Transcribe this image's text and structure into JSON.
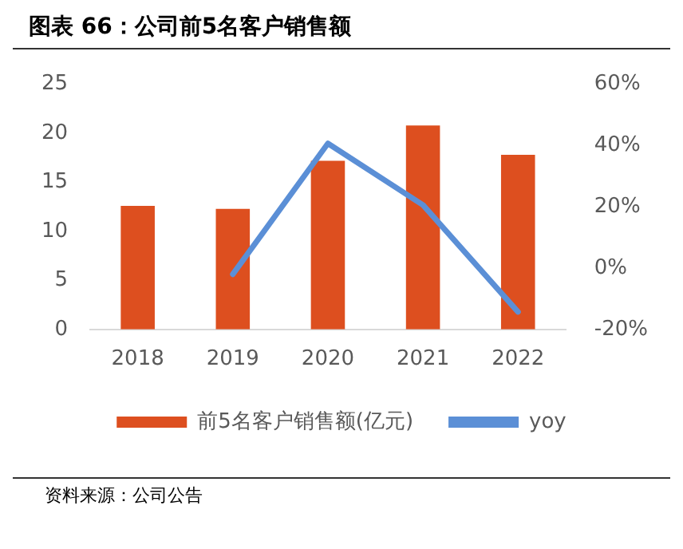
{
  "chart_data": {
    "type": "bar",
    "title": "图表 66：公司前5名客户销售额",
    "categories": [
      "2018",
      "2019",
      "2020",
      "2021",
      "2022"
    ],
    "series": [
      {
        "name": "前5名客户销售额(亿元)",
        "color": "#dd4f1f",
        "values": [
          12.6,
          12.3,
          17.2,
          20.8,
          17.8
        ]
      },
      {
        "name": "yoy",
        "type": "line",
        "axis": "y2",
        "color": "#5b8fd6",
        "values": [
          null,
          -2,
          40.7,
          20.6,
          -14.3
        ]
      }
    ],
    "ylim": [
      0,
      25
    ],
    "yticks": [
      0,
      5,
      10,
      15,
      20,
      25
    ],
    "y2lim": [
      -20,
      60
    ],
    "y2ticks": [
      {
        "value": -20,
        "label": "-20%"
      },
      {
        "value": 0,
        "label": "0%"
      },
      {
        "value": 20,
        "label": "20%"
      },
      {
        "value": 40,
        "label": "40%"
      },
      {
        "value": 60,
        "label": "60%"
      }
    ],
    "grid": false,
    "legend": "bottom",
    "marker": "none",
    "line_style": "solid",
    "annotations": [
      "资料来源：公司公告"
    ]
  }
}
